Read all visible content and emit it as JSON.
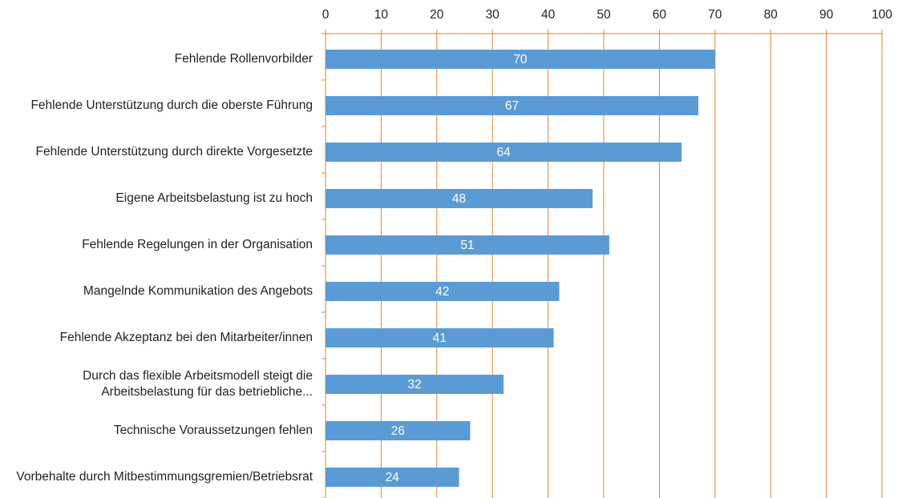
{
  "chart_data": {
    "type": "barh",
    "categories": [
      "Fehlende Rollenvorbilder",
      "Fehlende Unterstützung durch die oberste Führung",
      "Fehlende Unterstützung durch direkte Vorgesetzte",
      "Eigene Arbeitsbelastung ist zu hoch",
      "Fehlende Regelungen in der Organisation",
      "Mangelnde Kommunikation des Angebots",
      "Fehlende Akzeptanz bei den Mitarbeiter/innen",
      "Durch das flexible Arbeitsmodell steigt die Arbeitsbelastung für das betriebliche...",
      "Technische Voraussetzungen fehlen",
      "Vorbehalte durch Mitbestimmungsgremien/Betriebsrat"
    ],
    "values": [
      70,
      67,
      64,
      48,
      51,
      42,
      41,
      32,
      26,
      24
    ],
    "color": "#5b9bd5",
    "grid_color": "#e8822a",
    "xlim": [
      0,
      100
    ],
    "xticks": [
      0,
      10,
      20,
      30,
      40,
      50,
      60,
      70,
      80,
      90,
      100
    ],
    "grid": true
  }
}
